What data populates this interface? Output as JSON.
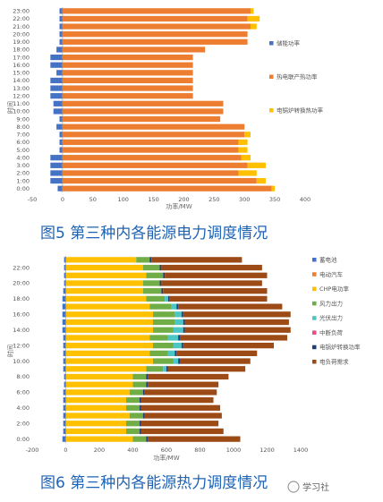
{
  "figure5": {
    "caption": "图5 第三种内各能源电力调度情况",
    "chart_data": {
      "type": "bar",
      "orientation": "horizontal",
      "stacked": true,
      "categories": [
        "0:00",
        "1:00",
        "2:00",
        "3:00",
        "4:00",
        "5:00",
        "6:00",
        "7:00",
        "8:00",
        "9:00",
        "10:00",
        "11:00",
        "12:00",
        "13:00",
        "14:00",
        "15:00",
        "16:00",
        "17:00",
        "18:00",
        "19:00",
        "20:00",
        "21:00",
        "22:00",
        "23:00"
      ],
      "xlabel": "功率/MW",
      "ylabel": "时间",
      "xlim": [
        -50,
        400
      ],
      "xticks": [
        -50,
        0,
        50,
        100,
        150,
        200,
        250,
        300,
        350,
        400
      ],
      "grid": false,
      "legend_position": "right",
      "series": [
        {
          "name": "储能功率",
          "color": "#4472c4",
          "values": [
            -8,
            -20,
            -20,
            -20,
            -20,
            -5,
            -5,
            -5,
            -10,
            -5,
            -15,
            -15,
            -20,
            -20,
            -20,
            -10,
            -20,
            -20,
            -10,
            -5,
            -5,
            -5,
            -5,
            -5
          ]
        },
        {
          "name": "热电联产热功率",
          "color": "#ed7d31",
          "values": [
            345,
            320,
            290,
            305,
            295,
            290,
            290,
            300,
            300,
            260,
            265,
            265,
            215,
            215,
            215,
            215,
            215,
            215,
            235,
            305,
            305,
            310,
            305,
            310
          ]
        },
        {
          "name": "电锅炉转换热功率",
          "color": "#ffc000",
          "values": [
            5,
            15,
            30,
            30,
            15,
            15,
            15,
            10,
            0,
            0,
            0,
            0,
            0,
            0,
            0,
            0,
            0,
            0,
            0,
            0,
            0,
            10,
            20,
            5
          ]
        }
      ]
    }
  },
  "figure6": {
    "caption": "图6 第三种内各能源热力调度情况",
    "chart_data": {
      "type": "bar",
      "orientation": "horizontal",
      "stacked": true,
      "categories": [
        "0:00",
        "1:00",
        "2:00",
        "3:00",
        "4:00",
        "5:00",
        "6:00",
        "7:00",
        "8:00",
        "9:00",
        "10:00",
        "11:00",
        "12:00",
        "13:00",
        "14:00",
        "15:00",
        "16:00",
        "17:00",
        "18:00",
        "19:00",
        "20:00",
        "21:00",
        "22:00",
        "23:00"
      ],
      "xlabel": "功率/MW",
      "ylabel": "时间",
      "xlim": [
        -200,
        1400
      ],
      "xticks": [
        -200,
        0,
        200,
        400,
        600,
        800,
        1000,
        1200,
        1400
      ],
      "ytick_labels": [
        "0:00",
        "2:00",
        "4:00",
        "6:00",
        "8:00",
        "10:00",
        "12:00",
        "14:00",
        "16:00",
        "18:00",
        "20:00",
        "22:00"
      ],
      "grid": false,
      "legend_position": "right",
      "series": [
        {
          "name": "蓄电池",
          "color": "#4472c4",
          "values": [
            -20,
            -15,
            -15,
            -15,
            -15,
            -15,
            -15,
            -10,
            -10,
            -15,
            -15,
            -15,
            -15,
            -15,
            -20,
            -20,
            -20,
            -20,
            -20,
            -15,
            -10,
            -10,
            -10,
            -10
          ]
        },
        {
          "name": "电动汽车",
          "color": "#ed7d31",
          "values": [
            0,
            0,
            0,
            0,
            0,
            0,
            0,
            0,
            0,
            0,
            0,
            0,
            0,
            0,
            0,
            0,
            0,
            0,
            0,
            0,
            0,
            0,
            0,
            0
          ]
        },
        {
          "name": "CHP电功率",
          "color": "#ffc000",
          "values": [
            400,
            360,
            360,
            380,
            360,
            360,
            380,
            400,
            400,
            480,
            520,
            500,
            520,
            500,
            520,
            520,
            520,
            500,
            480,
            460,
            460,
            480,
            460,
            420
          ]
        },
        {
          "name": "风力出力",
          "color": "#70ad47",
          "values": [
            80,
            80,
            80,
            80,
            80,
            80,
            80,
            80,
            80,
            100,
            120,
            110,
            120,
            110,
            120,
            130,
            130,
            130,
            110,
            110,
            100,
            100,
            100,
            80
          ]
        },
        {
          "name": "光伏出力",
          "color": "#4bc6c4",
          "values": [
            0,
            0,
            0,
            0,
            0,
            0,
            0,
            0,
            0,
            20,
            30,
            40,
            50,
            60,
            60,
            50,
            40,
            30,
            20,
            0,
            0,
            0,
            0,
            0
          ]
        },
        {
          "name": "中断负荷",
          "color": "#e84a8a",
          "values": [
            0,
            0,
            0,
            0,
            0,
            0,
            0,
            0,
            0,
            0,
            0,
            0,
            0,
            0,
            0,
            0,
            0,
            0,
            0,
            0,
            0,
            0,
            0,
            0
          ]
        },
        {
          "name": "电锅炉转换功率",
          "color": "#1f3f7a",
          "values": [
            10,
            10,
            10,
            10,
            10,
            10,
            10,
            10,
            10,
            10,
            10,
            10,
            10,
            10,
            10,
            10,
            10,
            10,
            10,
            10,
            10,
            10,
            10,
            10
          ]
        },
        {
          "name": "电负荷需求",
          "color": "#9c4a16",
          "values": [
            550,
            490,
            460,
            460,
            470,
            430,
            430,
            420,
            480,
            460,
            420,
            480,
            540,
            640,
            630,
            620,
            640,
            620,
            580,
            620,
            600,
            610,
            600,
            540
          ]
        }
      ]
    }
  },
  "watermark": "学习社"
}
